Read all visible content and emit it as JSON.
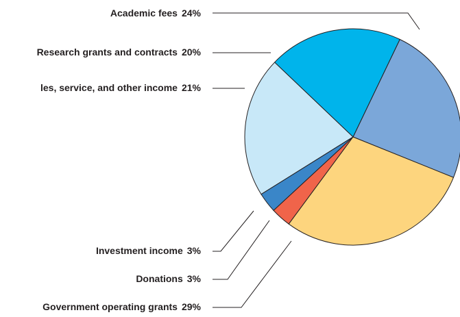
{
  "chart_data": {
    "type": "pie",
    "categories": [
      "Academic fees",
      "Research grants and contracts",
      "les, service, and other income",
      "Investment income",
      "Donations",
      "Government operating grants"
    ],
    "values": [
      24,
      20,
      21,
      3,
      3,
      29
    ],
    "value_labels": [
      "24%",
      "20%",
      "21%",
      "3%",
      "3%",
      "29%"
    ],
    "colors": [
      "#7ba7d9",
      "#00b4eb",
      "#c8e8f8",
      "#3a86c8",
      "#f0644a",
      "#fdd57e"
    ]
  }
}
